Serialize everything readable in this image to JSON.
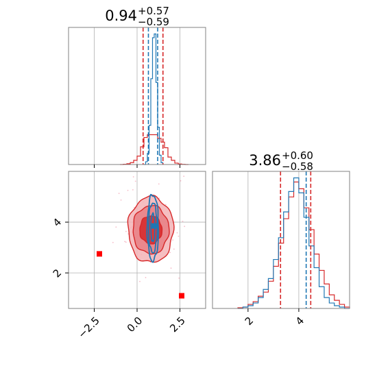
{
  "colors": {
    "red": "#d62728",
    "blue": "#1f77b4",
    "truth_blue": "#0000ff",
    "marker_red": "#ff0000",
    "grid": "#b0b0b0",
    "axis": "#808080"
  },
  "chart_data": [
    {
      "panel": "hist-param1",
      "type": "histogram",
      "title": {
        "median": "0.94",
        "plus": "+0.57",
        "minus": "−0.59"
      },
      "xlim": [
        -4.0,
        4.0
      ],
      "x_ticks": [
        -2.5,
        0.0,
        2.5
      ],
      "grid": true,
      "quantile_lines": [
        {
          "color": "red",
          "x": [
            0.35,
            1.51
          ]
        },
        {
          "color": "blue",
          "x": [
            0.66,
            1.2
          ]
        }
      ],
      "series": [
        {
          "color": "red",
          "bin_edges": [
            -1.0,
            -0.8,
            -0.6,
            -0.4,
            -0.2,
            0.0,
            0.2,
            0.4,
            0.6,
            0.8,
            1.0,
            1.2,
            1.4,
            1.6,
            1.8,
            2.0,
            2.2,
            2.4,
            2.6,
            2.8,
            3.0
          ],
          "values": [
            0.0,
            0.3,
            0.8,
            2.0,
            4.5,
            9.0,
            19.0,
            29.0,
            32.0,
            32.0,
            32.0,
            28.0,
            24.0,
            18.0,
            8.0,
            4.5,
            1.5,
            0.6,
            0.2,
            0.0
          ]
        },
        {
          "color": "blue",
          "bin_edges": [
            0.4,
            0.5,
            0.6,
            0.7,
            0.8,
            0.9,
            1.0,
            1.1,
            1.2,
            1.3,
            1.4,
            1.5
          ],
          "values": [
            0.0,
            3.0,
            12.0,
            42.0,
            92.0,
            136.0,
            140.0,
            88.0,
            40.0,
            10.0,
            2.0
          ]
        }
      ]
    },
    {
      "panel": "joint-param1-param2",
      "type": "contour",
      "xlim": [
        -4.0,
        4.0
      ],
      "ylim": [
        0.6,
        6.0
      ],
      "x_ticks": [
        -2.5,
        0.0,
        2.5
      ],
      "x_tick_labels": [
        "−2.5",
        "0.0",
        "2.5"
      ],
      "y_ticks": [
        2,
        4
      ],
      "y_tick_labels": [
        "2",
        "4"
      ],
      "grid": true,
      "red_contours": {
        "center": [
          0.8,
          3.7
        ],
        "levels": [
          {
            "sx": 0.65,
            "sy": 0.55
          },
          {
            "sx": 1.05,
            "sy": 0.95
          },
          {
            "sx": 1.32,
            "sy": 1.3
          }
        ]
      },
      "blue_contours": {
        "center": [
          0.92,
          3.78
        ],
        "levels": [
          {
            "sx": 0.12,
            "sy": 0.55
          },
          {
            "sx": 0.25,
            "sy": 0.98
          },
          {
            "sx": 0.33,
            "sy": 1.3
          }
        ]
      },
      "markers": [
        {
          "color": "blue",
          "x": 1.0,
          "y": 3.85
        },
        {
          "color": "marker_red",
          "x": -2.2,
          "y": 2.75
        },
        {
          "color": "marker_red",
          "x": 2.6,
          "y": 1.1
        }
      ]
    },
    {
      "panel": "hist-param2",
      "type": "histogram",
      "title": {
        "median": "3.86",
        "plus": "+0.60",
        "minus": "−0.58"
      },
      "xlim": [
        0.6,
        6.0
      ],
      "x_ticks": [
        2,
        4
      ],
      "x_tick_labels": [
        "2",
        "4"
      ],
      "grid": true,
      "quantile_lines": [
        {
          "color": "red",
          "x": [
            3.28,
            4.47
          ]
        },
        {
          "color": "blue",
          "x": [
            4.29
          ]
        }
      ],
      "series": [
        {
          "color": "red",
          "bin_edges": [
            1.6,
            1.8,
            2.0,
            2.2,
            2.4,
            2.6,
            2.8,
            3.0,
            3.2,
            3.4,
            3.6,
            3.8,
            4.0,
            4.2,
            4.4,
            4.6,
            4.8,
            5.0,
            5.2,
            5.4,
            5.6,
            5.8,
            6.0
          ],
          "values": [
            0.5,
            1.0,
            3.0,
            5.0,
            9.0,
            12.0,
            20.0,
            31.0,
            48.0,
            66.0,
            82.0,
            93.0,
            88.0,
            74.0,
            58.0,
            40.0,
            28.0,
            18.0,
            10.0,
            6.0,
            3.0,
            1.0
          ]
        },
        {
          "color": "blue",
          "bin_edges": [
            1.6,
            1.8,
            2.0,
            2.2,
            2.4,
            2.6,
            2.8,
            3.0,
            3.2,
            3.4,
            3.6,
            3.8,
            4.0,
            4.2,
            4.4,
            4.6,
            4.8,
            5.0,
            5.2,
            5.4,
            5.6,
            5.8,
            6.0
          ],
          "values": [
            0.0,
            1.0,
            2.0,
            4.0,
            8.0,
            14.0,
            22.0,
            36.0,
            52.0,
            71.0,
            86.0,
            96.0,
            85.0,
            67.0,
            46.0,
            30.0,
            16.0,
            8.0,
            4.0,
            2.0,
            1.0,
            0.0
          ]
        }
      ]
    }
  ]
}
